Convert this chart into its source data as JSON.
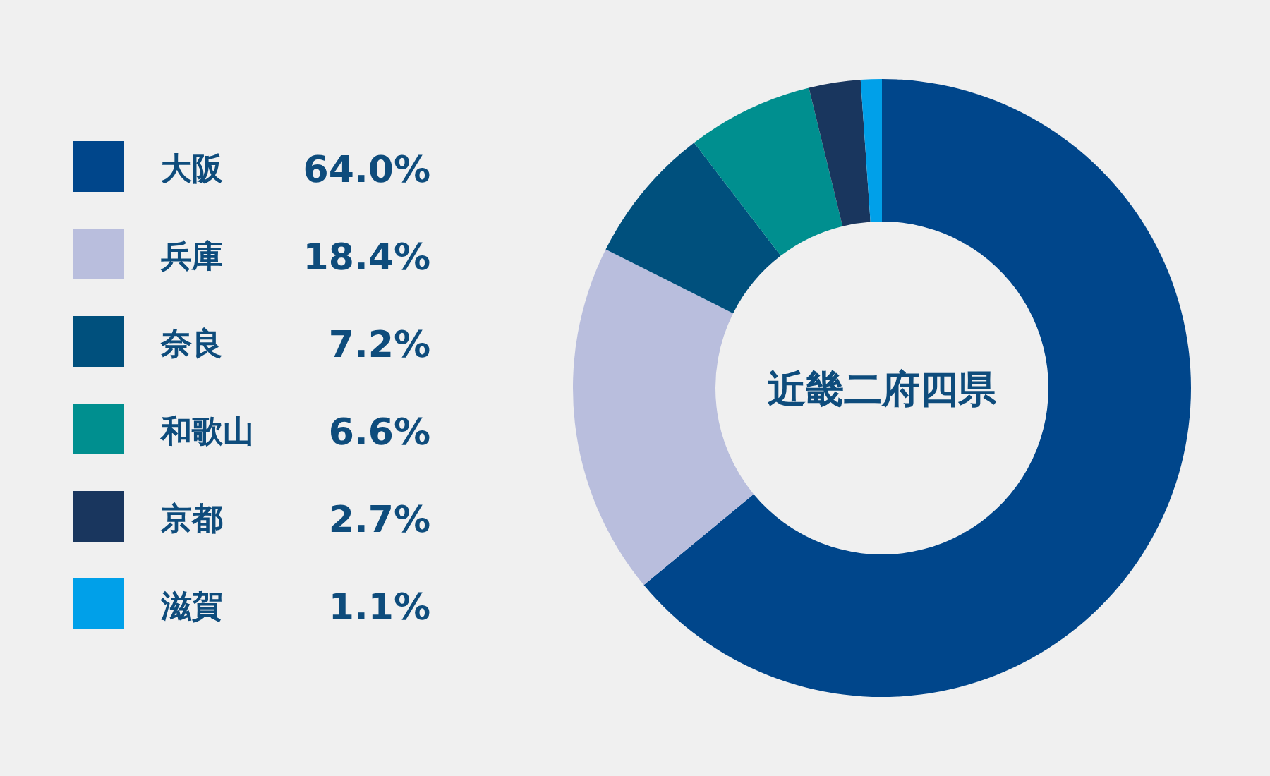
{
  "chart_data": {
    "type": "donut",
    "title": "近畿二府四県",
    "categories": [
      "大阪",
      "兵庫",
      "奈良",
      "和歌山",
      "京都",
      "滋賀"
    ],
    "values": [
      64.0,
      18.4,
      7.2,
      6.6,
      2.7,
      1.1
    ],
    "value_labels": [
      "64.0%",
      "18.4%",
      "7.2%",
      "6.6%",
      "2.7%",
      "1.1%"
    ],
    "colors": [
      "#00468b",
      "#b9bedd",
      "#00507d",
      "#008f8f",
      "#19365e",
      "#00a0e9"
    ],
    "legend": "left"
  }
}
